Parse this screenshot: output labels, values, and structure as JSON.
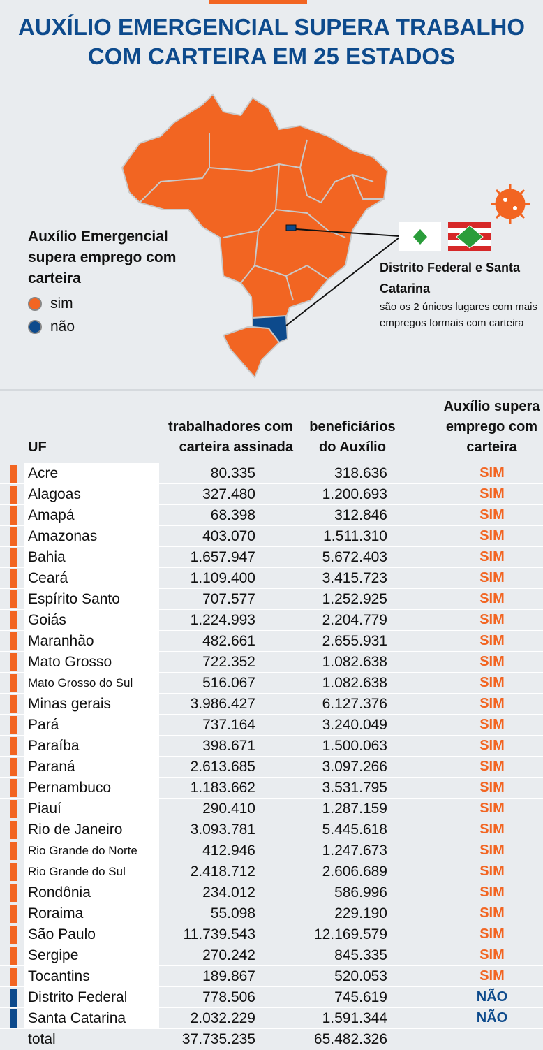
{
  "header": {
    "title_lines": [
      "AUXÍLIO EMERGENCIAL SUPERA TRABALHO",
      "COM CARTEIRA EM 25 ESTADOS"
    ]
  },
  "legend": {
    "title": "Auxílio Emergencial supera emprego com carteira",
    "items": [
      "sim",
      "não"
    ]
  },
  "annotation": {
    "title": "Distrito Federal e Santa Catarina",
    "text": "são os 2 únicos lugares com mais empregos formais com carteira"
  },
  "table": {
    "columns": [
      "UF",
      "trabalhadores com carteira assinada",
      "beneficiários do Auxílio",
      "Auxílio supera emprego com carteira"
    ],
    "rows": [
      [
        "Acre",
        "80.335",
        "318.636",
        "SIM"
      ],
      [
        "Alagoas",
        "327.480",
        "1.200.693",
        "SIM"
      ],
      [
        "Amapá",
        "68.398",
        "312.846",
        "SIM"
      ],
      [
        "Amazonas",
        "403.070",
        "1.511.310",
        "SIM"
      ],
      [
        "Bahia",
        "1.657.947",
        "5.672.403",
        "SIM"
      ],
      [
        "Ceará",
        "1.109.400",
        "3.415.723",
        "SIM"
      ],
      [
        "Espírito Santo",
        "707.577",
        "1.252.925",
        "SIM"
      ],
      [
        "Goiás",
        "1.224.993",
        "2.204.779",
        "SIM"
      ],
      [
        "Maranhão",
        "482.661",
        "2.655.931",
        "SIM"
      ],
      [
        "Mato Grosso",
        "722.352",
        "1.082.638",
        "SIM"
      ],
      [
        "Mato Grosso do Sul",
        "516.067",
        "1.082.638",
        "SIM"
      ],
      [
        "Minas gerais",
        "3.986.427",
        "6.127.376",
        "SIM"
      ],
      [
        "Pará",
        "737.164",
        "3.240.049",
        "SIM"
      ],
      [
        "Paraíba",
        "398.671",
        "1.500.063",
        "SIM"
      ],
      [
        "Paraná",
        "2.613.685",
        "3.097.266",
        "SIM"
      ],
      [
        "Pernambuco",
        "1.183.662",
        "3.531.795",
        "SIM"
      ],
      [
        "Piauí",
        "290.410",
        "1.287.159",
        "SIM"
      ],
      [
        "Rio de Janeiro",
        "3.093.781",
        "5.445.618",
        "SIM"
      ],
      [
        "Rio Grande do Norte",
        "412.946",
        "1.247.673",
        "SIM"
      ],
      [
        "Rio Grande do Sul",
        "2.418.712",
        "2.606.689",
        "SIM"
      ],
      [
        "Rondônia",
        "234.012",
        "586.996",
        "SIM"
      ],
      [
        "Roraima",
        "55.098",
        "229.190",
        "SIM"
      ],
      [
        "São Paulo",
        "11.739.543",
        "12.169.579",
        "SIM"
      ],
      [
        "Sergipe",
        "270.242",
        "845.335",
        "SIM"
      ],
      [
        "Tocantins",
        "189.867",
        "520.053",
        "SIM"
      ],
      [
        "Distrito Federal",
        "778.506",
        "745.619",
        "NÃO"
      ],
      [
        "Santa Catarina",
        "2.032.229",
        "1.591.344",
        "NÃO"
      ]
    ],
    "total": [
      "total",
      "37.735.235",
      "65.482.326"
    ]
  }
}
